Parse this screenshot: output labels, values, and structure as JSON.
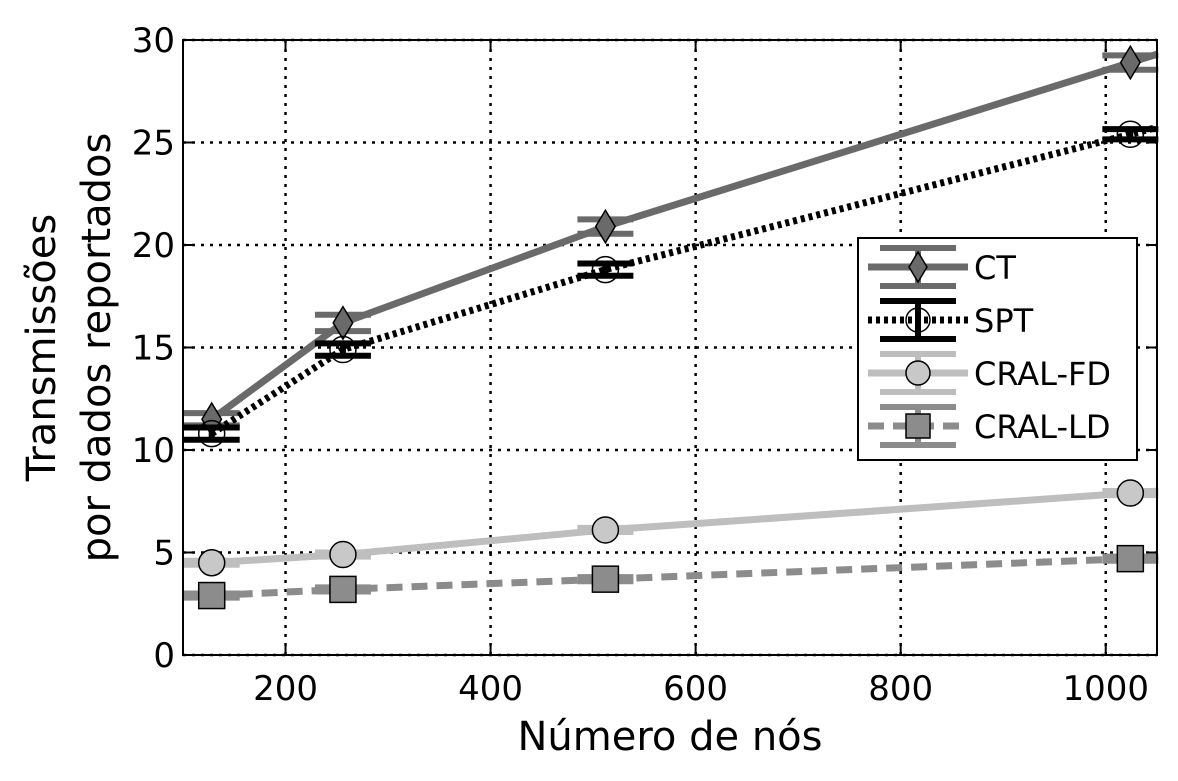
{
  "chart_data": {
    "type": "line",
    "title": "",
    "xlabel": "Número de nós",
    "ylabel_lines": [
      "Transmissões",
      "por dados reportados"
    ],
    "xlim": [
      100,
      1050
    ],
    "ylim": [
      0,
      30
    ],
    "xticks": [
      200,
      400,
      600,
      800,
      1000
    ],
    "yticks": [
      0,
      5,
      10,
      15,
      20,
      25,
      30
    ],
    "grid": true,
    "legend_position": "center-right",
    "series": [
      {
        "name": "CT",
        "marker": "diamond",
        "line_style": "solid",
        "color": "#6a6a6a",
        "marker_fill": "#6a6a6a",
        "x": [
          128,
          256,
          512,
          1024
        ],
        "y": [
          11.5,
          16.2,
          20.9,
          28.9
        ],
        "err": [
          0.3,
          0.4,
          0.35,
          0.35
        ]
      },
      {
        "name": "SPT",
        "marker": "circle",
        "line_style": "dotted",
        "color": "#000000",
        "marker_fill": "none",
        "x": [
          128,
          256,
          512,
          1024
        ],
        "y": [
          10.8,
          14.9,
          18.8,
          25.4
        ],
        "err": [
          0.3,
          0.3,
          0.3,
          0.25
        ]
      },
      {
        "name": "CRAL-FD",
        "marker": "circle",
        "line_style": "solid",
        "color": "#bebebe",
        "marker_fill": "#c8c8c8",
        "x": [
          128,
          256,
          512,
          1024
        ],
        "y": [
          4.5,
          4.9,
          6.1,
          7.9
        ],
        "err": [
          0.1,
          0.1,
          0.1,
          0.1
        ]
      },
      {
        "name": "CRAL-LD",
        "marker": "square",
        "line_style": "dashed",
        "color": "#8c8c8c",
        "marker_fill": "#8c8c8c",
        "x": [
          128,
          256,
          512,
          1024
        ],
        "y": [
          2.9,
          3.2,
          3.7,
          4.7
        ],
        "err": [
          0.1,
          0.1,
          0.1,
          0.1
        ]
      }
    ]
  }
}
